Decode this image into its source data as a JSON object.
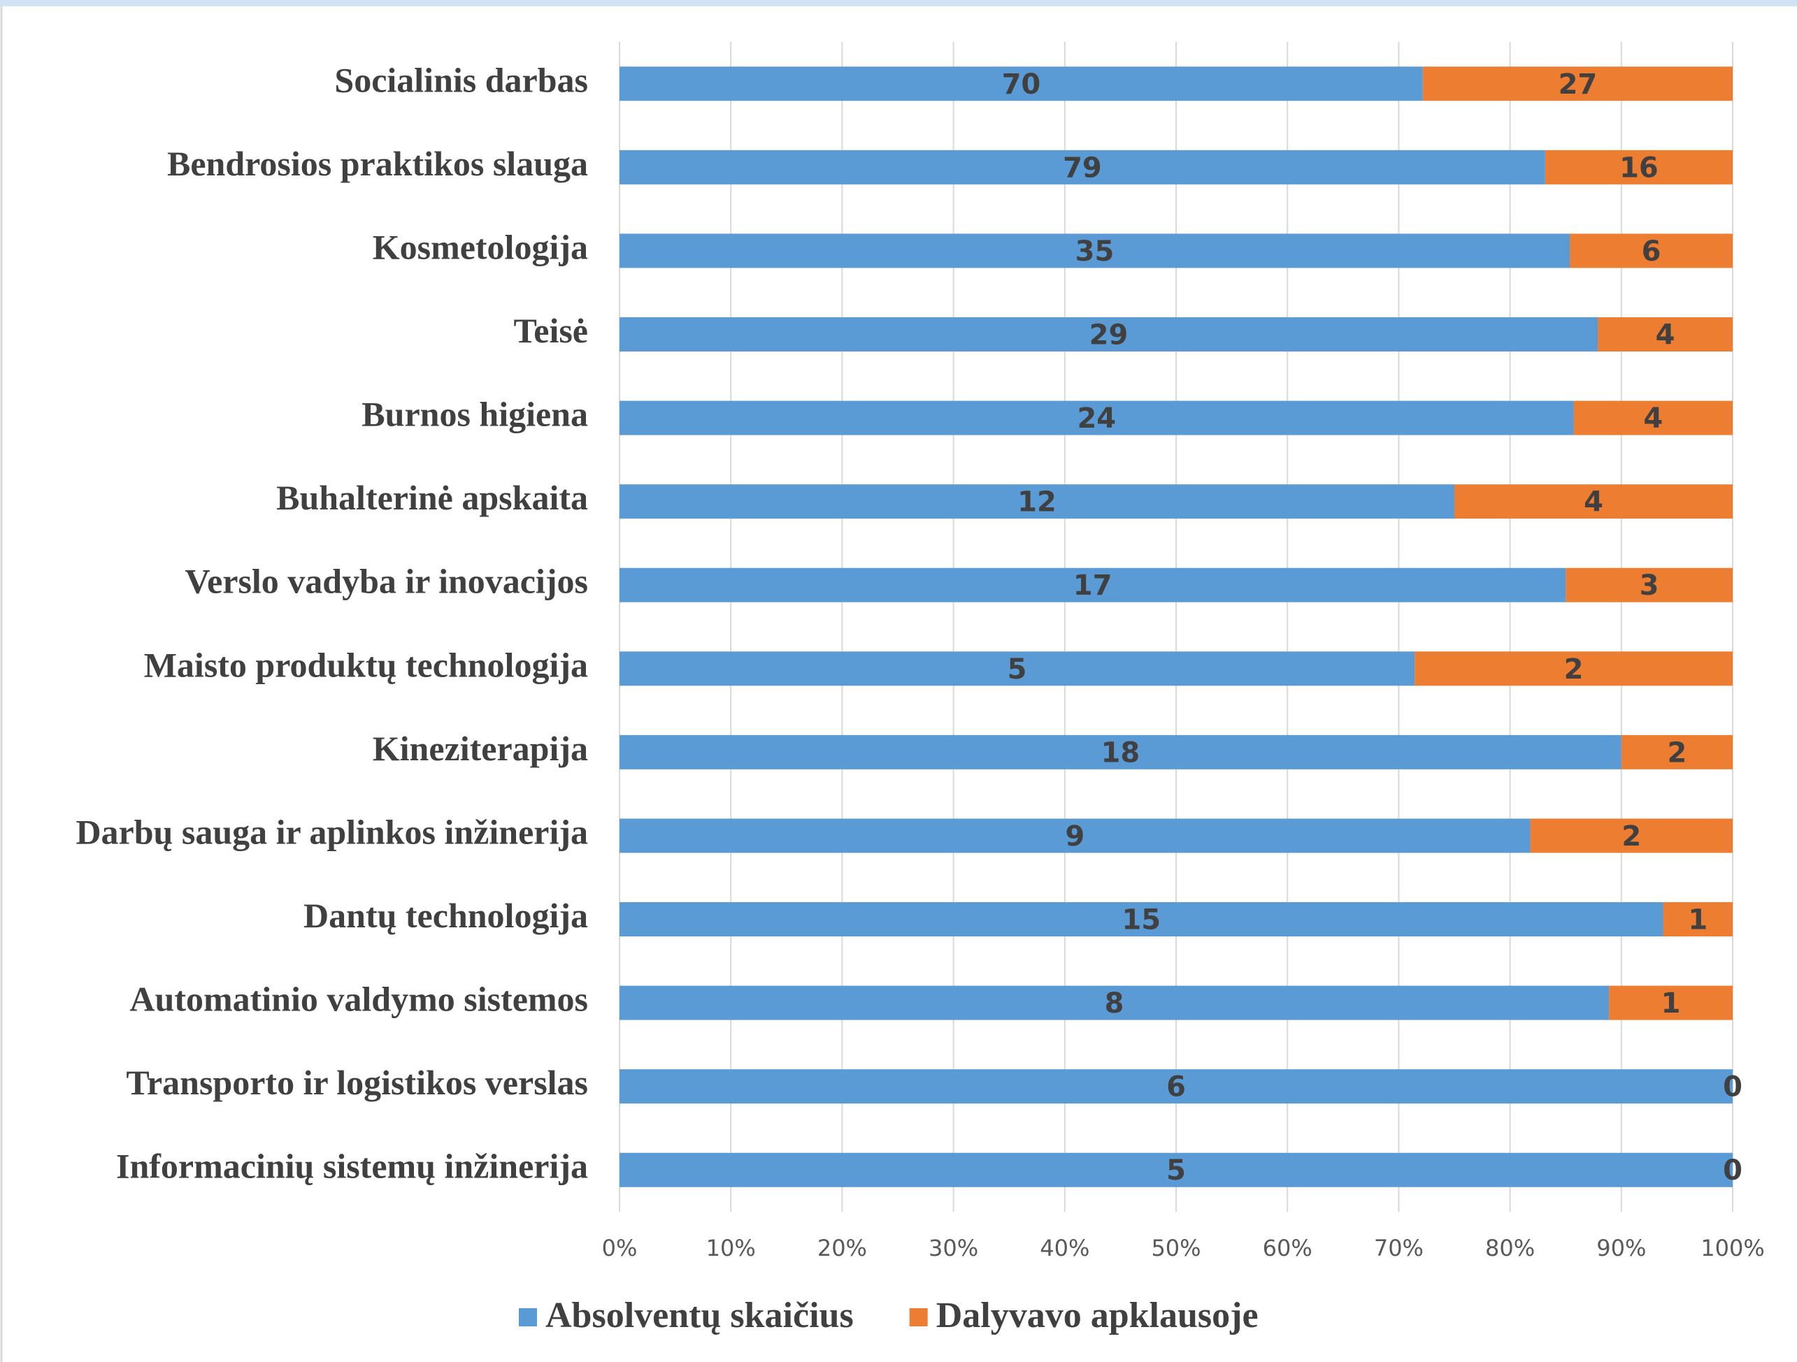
{
  "chart_data": {
    "type": "bar",
    "orientation": "horizontal",
    "stacking": "percent",
    "categories": [
      "Socialinis darbas",
      "Bendrosios praktikos slauga",
      "Kosmetologija",
      "Teisė",
      "Burnos higiena",
      "Buhalterinė apskaita",
      "Verslo vadyba ir inovacijos",
      "Maisto produktų technologija",
      "Kineziterapija",
      "Darbų sauga ir aplinkos inžinerija",
      "Dantų technologija",
      "Automatinio valdymo sistemos",
      "Transporto ir logistikos verslas",
      "Informacinių sistemų inžinerija"
    ],
    "series": [
      {
        "name": "Absolventų skaičius",
        "color": "#5b9bd5",
        "values": [
          70,
          79,
          35,
          29,
          24,
          12,
          17,
          5,
          18,
          9,
          15,
          8,
          6,
          5
        ]
      },
      {
        "name": "Dalyvavo apklausoje",
        "color": "#ed7d31",
        "values": [
          27,
          16,
          6,
          4,
          4,
          4,
          3,
          2,
          2,
          2,
          1,
          1,
          0,
          0
        ]
      }
    ],
    "xlim": [
      0,
      100
    ],
    "xticks": [
      {
        "value": 0,
        "label": "0%"
      },
      {
        "value": 10,
        "label": "10%"
      },
      {
        "value": 20,
        "label": "20%"
      },
      {
        "value": 30,
        "label": "30%"
      },
      {
        "value": 40,
        "label": "40%"
      },
      {
        "value": 50,
        "label": "50%"
      },
      {
        "value": 60,
        "label": "60%"
      },
      {
        "value": 70,
        "label": "70%"
      },
      {
        "value": 80,
        "label": "80%"
      },
      {
        "value": 90,
        "label": "90%"
      },
      {
        "value": 100,
        "label": "100%"
      }
    ],
    "grid": true,
    "legend": "bottom"
  }
}
